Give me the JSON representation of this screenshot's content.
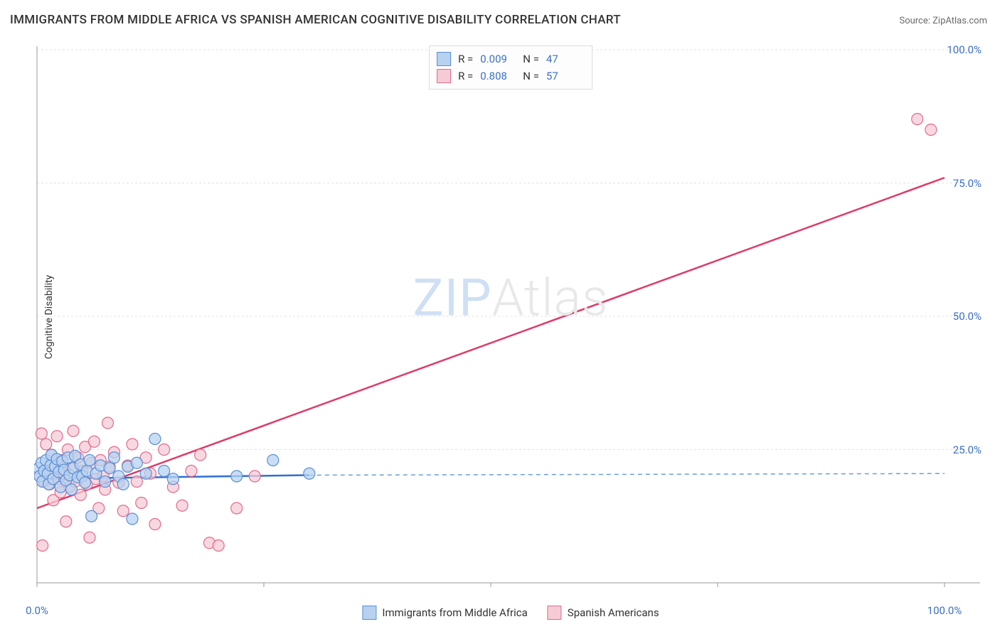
{
  "title": "IMMIGRANTS FROM MIDDLE AFRICA VS SPANISH AMERICAN COGNITIVE DISABILITY CORRELATION CHART",
  "source_prefix": "Source: ",
  "source_name": "ZipAtlas.com",
  "ylabel": "Cognitive Disability",
  "watermark": {
    "left": "ZIP",
    "right": "Atlas"
  },
  "chart": {
    "type": "scatter",
    "xlim": [
      0,
      100
    ],
    "ylim": [
      0,
      100
    ],
    "xticks": [
      0,
      25,
      50,
      75,
      100
    ],
    "xtick_labels": [
      "0.0%",
      "",
      "",
      "",
      "100.0%"
    ],
    "yticks": [
      25,
      50,
      75,
      100
    ],
    "ytick_labels": [
      "25.0%",
      "50.0%",
      "75.0%",
      "100.0%"
    ],
    "background_color": "#ffffff",
    "grid_color": "#e3e3e3",
    "axis_color": "#9a9a9a",
    "tick_color": "#9a9a9a",
    "label_color": "#3b6fc9",
    "series": [
      {
        "name": "Immigrants from Middle Africa",
        "marker_fill": "#b7d1f0",
        "marker_stroke": "#5a8fd6",
        "stroke_alt": "#6a9edb",
        "line_color": "#2f6fd0",
        "line_width": 2.5,
        "dashed_line_color": "#6a9edb",
        "marker_radius": 8,
        "r_value": "0.009",
        "n_value": "47",
        "trend_solid": {
          "x1": 0,
          "y1": 19.5,
          "x2": 30,
          "y2": 20.2
        },
        "trend_dashed": {
          "x1": 30,
          "y1": 20.2,
          "x2": 100,
          "y2": 20.5
        },
        "points": [
          [
            0.2,
            21.5
          ],
          [
            0.3,
            20.0
          ],
          [
            0.5,
            22.5
          ],
          [
            0.6,
            19.0
          ],
          [
            0.8,
            21.0
          ],
          [
            1.0,
            23.0
          ],
          [
            1.2,
            20.5
          ],
          [
            1.3,
            18.5
          ],
          [
            1.5,
            22.0
          ],
          [
            1.6,
            24.0
          ],
          [
            1.8,
            19.5
          ],
          [
            2.0,
            21.8
          ],
          [
            2.2,
            23.2
          ],
          [
            2.4,
            20.8
          ],
          [
            2.6,
            18.0
          ],
          [
            2.8,
            22.8
          ],
          [
            3.0,
            21.2
          ],
          [
            3.2,
            19.2
          ],
          [
            3.4,
            23.5
          ],
          [
            3.6,
            20.2
          ],
          [
            3.8,
            17.5
          ],
          [
            4.0,
            21.5
          ],
          [
            4.2,
            23.8
          ],
          [
            4.5,
            19.8
          ],
          [
            4.8,
            22.2
          ],
          [
            5.0,
            20.0
          ],
          [
            5.3,
            18.8
          ],
          [
            5.5,
            21.0
          ],
          [
            5.8,
            23.0
          ],
          [
            6.0,
            12.5
          ],
          [
            6.5,
            20.5
          ],
          [
            7.0,
            22.0
          ],
          [
            7.5,
            19.0
          ],
          [
            8.0,
            21.5
          ],
          [
            8.5,
            23.5
          ],
          [
            9.0,
            20.0
          ],
          [
            9.5,
            18.5
          ],
          [
            10.0,
            21.8
          ],
          [
            10.5,
            12.0
          ],
          [
            11.0,
            22.5
          ],
          [
            12.0,
            20.5
          ],
          [
            13.0,
            27.0
          ],
          [
            14.0,
            21.0
          ],
          [
            15.0,
            19.5
          ],
          [
            22.0,
            20.0
          ],
          [
            26.0,
            23.0
          ],
          [
            30.0,
            20.5
          ]
        ]
      },
      {
        "name": "Spanish Americans",
        "marker_fill": "#f6cbd6",
        "marker_stroke": "#e26a8d",
        "stroke_alt": "#e77aa0",
        "line_color": "#e03a6a",
        "line_width": 2.5,
        "marker_radius": 8,
        "r_value": "0.808",
        "n_value": "57",
        "trend_solid": {
          "x1": 0,
          "y1": 14.0,
          "x2": 100,
          "y2": 76.0
        },
        "points": [
          [
            0.3,
            20.0
          ],
          [
            0.5,
            28.0
          ],
          [
            0.6,
            7.0
          ],
          [
            0.8,
            19.0
          ],
          [
            1.0,
            26.0
          ],
          [
            1.2,
            21.0
          ],
          [
            1.4,
            18.5
          ],
          [
            1.6,
            24.0
          ],
          [
            1.8,
            15.5
          ],
          [
            2.0,
            22.0
          ],
          [
            2.2,
            27.5
          ],
          [
            2.4,
            19.5
          ],
          [
            2.6,
            17.0
          ],
          [
            2.8,
            23.0
          ],
          [
            3.0,
            20.5
          ],
          [
            3.2,
            11.5
          ],
          [
            3.4,
            25.0
          ],
          [
            3.6,
            18.0
          ],
          [
            3.8,
            21.5
          ],
          [
            4.0,
            28.5
          ],
          [
            4.2,
            19.0
          ],
          [
            4.5,
            23.5
          ],
          [
            4.8,
            16.5
          ],
          [
            5.0,
            21.0
          ],
          [
            5.3,
            25.5
          ],
          [
            5.5,
            18.5
          ],
          [
            5.8,
            8.5
          ],
          [
            6.0,
            22.5
          ],
          [
            6.3,
            26.5
          ],
          [
            6.5,
            19.5
          ],
          [
            6.8,
            14.0
          ],
          [
            7.0,
            23.0
          ],
          [
            7.3,
            20.0
          ],
          [
            7.5,
            17.5
          ],
          [
            7.8,
            30.0
          ],
          [
            8.0,
            21.8
          ],
          [
            8.5,
            24.5
          ],
          [
            9.0,
            18.8
          ],
          [
            9.5,
            13.5
          ],
          [
            10.0,
            22.0
          ],
          [
            10.5,
            26.0
          ],
          [
            11.0,
            19.0
          ],
          [
            11.5,
            15.0
          ],
          [
            12.0,
            23.5
          ],
          [
            12.5,
            20.5
          ],
          [
            13.0,
            11.0
          ],
          [
            14.0,
            25.0
          ],
          [
            15.0,
            18.0
          ],
          [
            16.0,
            14.5
          ],
          [
            17.0,
            21.0
          ],
          [
            18.0,
            24.0
          ],
          [
            19.0,
            7.5
          ],
          [
            20.0,
            7.0
          ],
          [
            22.0,
            14.0
          ],
          [
            24.0,
            20.0
          ],
          [
            97.0,
            87.0
          ],
          [
            98.5,
            85.0
          ]
        ]
      }
    ]
  },
  "legend_top_labels": {
    "r": "R =",
    "n": "N ="
  },
  "legend_bottom": [
    {
      "label": "Immigrants from Middle Africa",
      "fill": "#b7d1f0",
      "stroke": "#5a8fd6"
    },
    {
      "label": "Spanish Americans",
      "fill": "#f6cbd6",
      "stroke": "#e26a8d"
    }
  ]
}
